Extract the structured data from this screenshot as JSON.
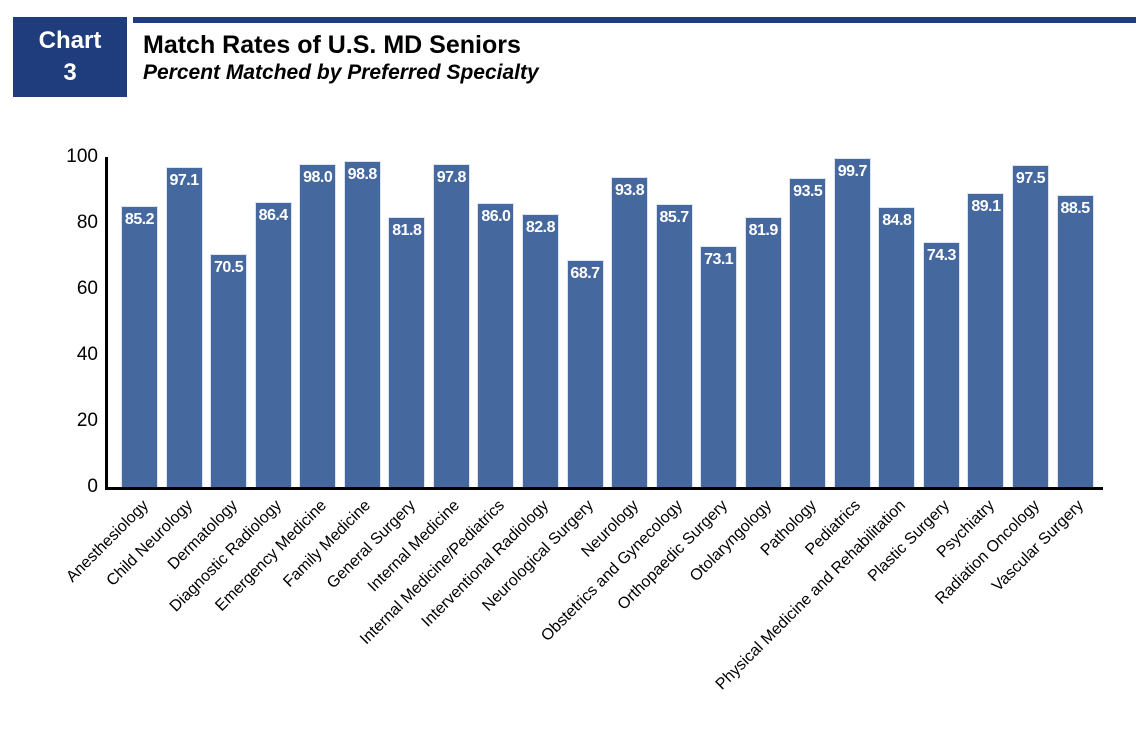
{
  "header": {
    "badge_line1": "Chart",
    "badge_line2": "3",
    "title": "Match Rates of U.S. MD Seniors",
    "subtitle": "Percent Matched by Preferred Specialty"
  },
  "colors": {
    "navy": "#1f3c7d",
    "bar_fill": "#45689e",
    "bar_edge": "#dde3f0",
    "axis": "#000000",
    "value_label_text": "#ffffff"
  },
  "chart_data": {
    "type": "bar",
    "title": "Match Rates of U.S. MD Seniors",
    "subtitle": "Percent Matched by Preferred Specialty",
    "categories": [
      "Anesthesiology",
      "Child Neurology",
      "Dermatology",
      "Diagnostic Radiology",
      "Emergency Medicine",
      "Family Medicine",
      "General Surgery",
      "Internal Medicine",
      "Internal Medicine/Pediatrics",
      "Interventional Radiology",
      "Neurological Surgery",
      "Neurology",
      "Obstetrics and Gynecology",
      "Orthopaedic Surgery",
      "Otolaryngology",
      "Pathology",
      "Pediatrics",
      "Physical Medicine and Rehabilitation",
      "Plastic Surgery",
      "Psychiatry",
      "Radiation Oncology",
      "Vascular Surgery"
    ],
    "values": [
      85.2,
      97.1,
      70.5,
      86.4,
      98.0,
      98.8,
      81.8,
      97.8,
      86.0,
      82.8,
      68.7,
      93.8,
      85.7,
      73.1,
      81.9,
      93.5,
      99.7,
      84.8,
      74.3,
      89.1,
      97.5,
      88.5
    ],
    "value_labels": [
      "85.2",
      "97.1",
      "70.5",
      "86.4",
      "98.0",
      "98.8",
      "81.8",
      "97.8",
      "86.0",
      "82.8",
      "68.7",
      "93.8",
      "85.7",
      "73.1",
      "81.9",
      "93.5",
      "99.7",
      "84.8",
      "74.3",
      "89.1",
      "97.5",
      "88.5"
    ],
    "xlabel": "",
    "ylabel": "",
    "ylim": [
      0,
      100
    ],
    "yticks": [
      0,
      20,
      40,
      60,
      80,
      100
    ],
    "grid": false,
    "legend_position": "none",
    "value_label_position": "inside-top",
    "x_tick_rotation": -45
  }
}
